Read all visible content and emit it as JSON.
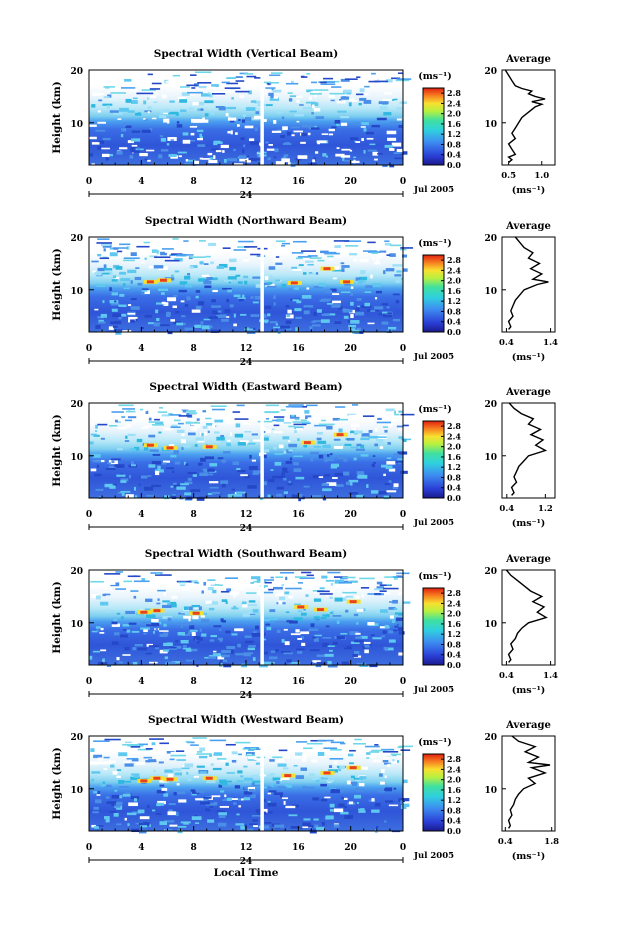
{
  "chart_data": [
    {
      "type": "heatmap",
      "title": "Spectral Width (Vertical Beam)",
      "ylabel": "Height (km)",
      "xticks": [
        "0",
        "4",
        "8",
        "12",
        "16",
        "20",
        "0"
      ],
      "xlim": [
        0,
        24
      ],
      "ylim": [
        2,
        20
      ],
      "yticks": [
        "20",
        "10"
      ],
      "day_marker": "24",
      "date_label": "Jul 2005",
      "colorbar": {
        "unit": "(ms⁻¹)",
        "ticks": [
          "2.8",
          "2.4",
          "2.0",
          "1.6",
          "1.2",
          "0.8",
          "0.4",
          "0.0"
        ],
        "range": [
          0.0,
          3.0
        ]
      },
      "average": {
        "title": "Average",
        "xlabel": "(ms⁻¹)",
        "xticks": [
          "0.5",
          "1.0"
        ],
        "xlim": [
          0.4,
          1.2
        ],
        "yticks": [
          "20",
          "10"
        ],
        "profile": [
          [
            0.5,
            2.5
          ],
          [
            0.55,
            3
          ],
          [
            0.5,
            3.5
          ],
          [
            0.6,
            4
          ],
          [
            0.55,
            5
          ],
          [
            0.5,
            6
          ],
          [
            0.6,
            7
          ],
          [
            0.55,
            8
          ],
          [
            0.6,
            9
          ],
          [
            0.65,
            10
          ],
          [
            0.7,
            11
          ],
          [
            0.8,
            12
          ],
          [
            0.9,
            13
          ],
          [
            1.0,
            13.5
          ],
          [
            0.85,
            14
          ],
          [
            1.05,
            14.5
          ],
          [
            0.9,
            15
          ],
          [
            0.8,
            15.5
          ],
          [
            0.85,
            16
          ],
          [
            0.7,
            16.5
          ],
          [
            0.6,
            17
          ],
          [
            0.55,
            18
          ],
          [
            0.5,
            19
          ],
          [
            0.45,
            20
          ]
        ]
      },
      "hot_spots": []
    },
    {
      "type": "heatmap",
      "title": "Spectral Width (Northward Beam)",
      "ylabel": "Height (km)",
      "xticks": [
        "0",
        "4",
        "8",
        "12",
        "16",
        "20",
        "0"
      ],
      "xlim": [
        0,
        24
      ],
      "ylim": [
        2,
        20
      ],
      "yticks": [
        "20",
        "10"
      ],
      "day_marker": "24",
      "date_label": "Jul 2005",
      "colorbar": {
        "unit": "(ms⁻¹)",
        "ticks": [
          "2.8",
          "2.4",
          "2.0",
          "1.6",
          "1.2",
          "0.8",
          "0.4",
          "0.0"
        ],
        "range": [
          0.0,
          3.0
        ]
      },
      "average": {
        "title": "Average",
        "xlabel": "(ms⁻¹)",
        "xticks": [
          "0.4",
          "1.4"
        ],
        "xlim": [
          0.3,
          1.5
        ],
        "yticks": [
          "20",
          "10"
        ],
        "profile": [
          [
            0.45,
            2.5
          ],
          [
            0.5,
            3
          ],
          [
            0.45,
            4
          ],
          [
            0.55,
            5
          ],
          [
            0.5,
            6
          ],
          [
            0.55,
            7
          ],
          [
            0.6,
            8
          ],
          [
            0.7,
            9
          ],
          [
            0.8,
            10
          ],
          [
            1.1,
            11
          ],
          [
            1.35,
            11.5
          ],
          [
            1.0,
            12
          ],
          [
            1.2,
            13
          ],
          [
            0.95,
            14
          ],
          [
            1.15,
            15
          ],
          [
            0.9,
            16
          ],
          [
            1.0,
            17
          ],
          [
            0.8,
            18
          ],
          [
            0.7,
            19
          ],
          [
            0.6,
            20
          ]
        ]
      },
      "hot_spots": [
        [
          4.5,
          11.5
        ],
        [
          5.5,
          11.8
        ],
        [
          15.5,
          11.3
        ],
        [
          19.5,
          11.5
        ],
        [
          18,
          14
        ]
      ]
    },
    {
      "type": "heatmap",
      "title": "Spectral Width (Eastward Beam)",
      "ylabel": "Height (km)",
      "xticks": [
        "0",
        "4",
        "8",
        "12",
        "16",
        "20",
        "0"
      ],
      "xlim": [
        0,
        24
      ],
      "ylim": [
        2,
        20
      ],
      "yticks": [
        "20",
        "10"
      ],
      "day_marker": "24",
      "date_label": "Jul 2005",
      "colorbar": {
        "unit": "(ms⁻¹)",
        "ticks": [
          "2.8",
          "2.4",
          "2.0",
          "1.6",
          "1.2",
          "0.8",
          "0.4",
          "0.0"
        ],
        "range": [
          0.0,
          3.0
        ]
      },
      "average": {
        "title": "Average",
        "xlabel": "(ms⁻¹)",
        "xticks": [
          "0.4",
          "1.2"
        ],
        "xlim": [
          0.3,
          1.4
        ],
        "yticks": [
          "20",
          "10"
        ],
        "profile": [
          [
            0.5,
            2.5
          ],
          [
            0.55,
            3
          ],
          [
            0.5,
            4
          ],
          [
            0.6,
            5
          ],
          [
            0.55,
            6
          ],
          [
            0.6,
            7
          ],
          [
            0.65,
            8
          ],
          [
            0.75,
            9
          ],
          [
            0.85,
            10
          ],
          [
            1.2,
            11
          ],
          [
            1.0,
            12
          ],
          [
            1.15,
            13
          ],
          [
            0.9,
            14
          ],
          [
            1.1,
            15
          ],
          [
            0.85,
            16
          ],
          [
            0.95,
            17
          ],
          [
            0.7,
            18
          ],
          [
            0.55,
            19
          ],
          [
            0.45,
            20
          ]
        ]
      },
      "hot_spots": [
        [
          4.5,
          12
        ],
        [
          6,
          11.5
        ],
        [
          9,
          11.7
        ],
        [
          16.5,
          12.5
        ],
        [
          19,
          14
        ]
      ]
    },
    {
      "type": "heatmap",
      "title": "Spectral Width (Southward Beam)",
      "ylabel": "Height (km)",
      "xticks": [
        "0",
        "4",
        "8",
        "12",
        "16",
        "20",
        "0"
      ],
      "xlim": [
        0,
        24
      ],
      "ylim": [
        2,
        20
      ],
      "yticks": [
        "20",
        "10"
      ],
      "day_marker": "24",
      "date_label": "Jul 2005",
      "colorbar": {
        "unit": "(ms⁻¹)",
        "ticks": [
          "2.8",
          "2.4",
          "2.0",
          "1.6",
          "1.2",
          "0.8",
          "0.4",
          "0.0"
        ],
        "range": [
          0.0,
          3.0
        ]
      },
      "average": {
        "title": "Average",
        "xlabel": "(ms⁻¹)",
        "xticks": [
          "0.4",
          "1.4"
        ],
        "xlim": [
          0.3,
          1.5
        ],
        "yticks": [
          "20",
          "10"
        ],
        "profile": [
          [
            0.45,
            2.5
          ],
          [
            0.5,
            3
          ],
          [
            0.45,
            4
          ],
          [
            0.55,
            5
          ],
          [
            0.5,
            6
          ],
          [
            0.6,
            7
          ],
          [
            0.65,
            8
          ],
          [
            0.75,
            9
          ],
          [
            0.9,
            10
          ],
          [
            1.3,
            11
          ],
          [
            1.1,
            12
          ],
          [
            1.25,
            13
          ],
          [
            1.0,
            14
          ],
          [
            1.2,
            15
          ],
          [
            0.95,
            16
          ],
          [
            0.8,
            17
          ],
          [
            0.65,
            18
          ],
          [
            0.5,
            19
          ],
          [
            0.4,
            20
          ]
        ]
      },
      "hot_spots": [
        [
          4,
          12
        ],
        [
          5,
          12.3
        ],
        [
          8,
          11.8
        ],
        [
          16,
          13
        ],
        [
          17.5,
          12.5
        ],
        [
          20,
          14
        ]
      ]
    },
    {
      "type": "heatmap",
      "title": "Spectral Width (Westward Beam)",
      "ylabel": "Height (km)",
      "xticks": [
        "0",
        "4",
        "8",
        "12",
        "16",
        "20",
        "0"
      ],
      "xlim": [
        0,
        24
      ],
      "ylim": [
        2,
        20
      ],
      "yticks": [
        "20",
        "10"
      ],
      "day_marker": "24",
      "date_label": "Jul 2005",
      "xlabel": "Local Time",
      "colorbar": {
        "unit": "(ms⁻¹)",
        "ticks": [
          "2.8",
          "2.4",
          "2.0",
          "1.6",
          "1.2",
          "0.8",
          "0.4",
          "0.0"
        ],
        "range": [
          0.0,
          3.0
        ]
      },
      "average": {
        "title": "Average",
        "xlabel": "(ms⁻¹)",
        "xticks": [
          "0.4",
          "1.8"
        ],
        "xlim": [
          0.3,
          1.9
        ],
        "yticks": [
          "20",
          "10"
        ],
        "profile": [
          [
            0.5,
            2.5
          ],
          [
            0.55,
            3
          ],
          [
            0.5,
            4
          ],
          [
            0.6,
            5
          ],
          [
            0.55,
            6
          ],
          [
            0.65,
            7
          ],
          [
            0.7,
            8
          ],
          [
            0.8,
            9
          ],
          [
            0.95,
            10
          ],
          [
            1.3,
            11
          ],
          [
            1.1,
            12
          ],
          [
            1.6,
            13
          ],
          [
            1.2,
            14
          ],
          [
            1.75,
            14.5
          ],
          [
            1.1,
            15
          ],
          [
            1.4,
            16
          ],
          [
            1.0,
            17
          ],
          [
            1.3,
            18
          ],
          [
            0.8,
            19
          ],
          [
            0.6,
            20
          ]
        ]
      },
      "hot_spots": [
        [
          4,
          11.5
        ],
        [
          5,
          12
        ],
        [
          6,
          11.8
        ],
        [
          9,
          12
        ],
        [
          15,
          12.5
        ],
        [
          18,
          13
        ],
        [
          20,
          14
        ]
      ]
    }
  ]
}
